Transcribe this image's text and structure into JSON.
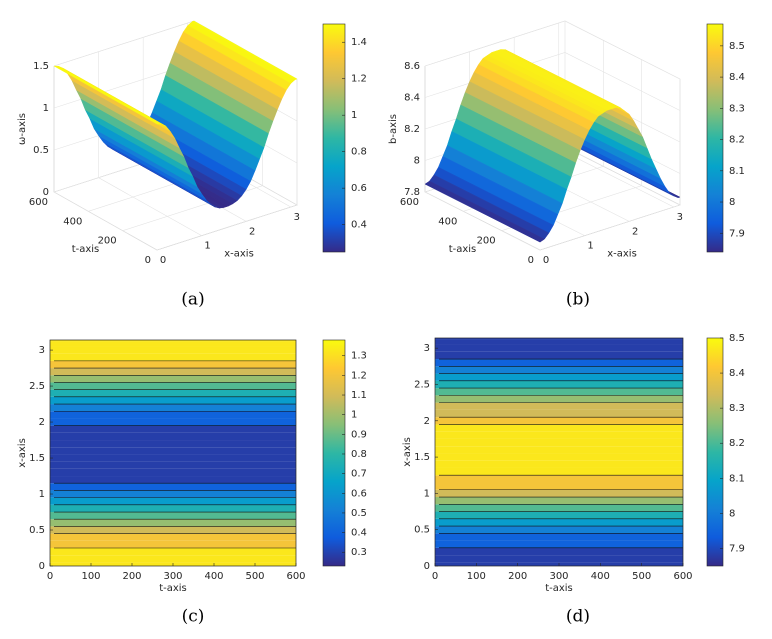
{
  "chart_data": [
    {
      "type": "surface",
      "caption": "(a)",
      "x_label": "x-axis",
      "t_label": "t-axis",
      "z_label": "ω-axis",
      "xlim": [
        0,
        3.14
      ],
      "xticks": [
        0,
        1,
        2,
        3
      ],
      "tlim": [
        0,
        600
      ],
      "tticks": [
        0,
        200,
        400,
        600
      ],
      "zlim": [
        0,
        1.5
      ],
      "zticks": [
        0,
        0.5,
        1,
        1.5
      ],
      "clim": [
        0.25,
        1.5
      ],
      "cticks": [
        0.4,
        0.6,
        0.8,
        1,
        1.2,
        1.4
      ],
      "colormap": [
        "#352a87",
        "#0f5cdd",
        "#1481d6",
        "#06a4ca",
        "#2eb7a4",
        "#87bf77",
        "#d1bb59",
        "#fec832",
        "#f9fb0e"
      ],
      "x": [
        0,
        0.1,
        0.2,
        0.3,
        0.4,
        0.5,
        0.6,
        0.7,
        0.8,
        0.9,
        1,
        1.1,
        1.2,
        1.3,
        1.4,
        1.5,
        1.6,
        1.7,
        1.8,
        1.9,
        2,
        2.1,
        2.2,
        2.3,
        2.4,
        2.5,
        2.6,
        2.7,
        2.8,
        2.9,
        3,
        3.1,
        3.14
      ],
      "values": [
        1.5,
        1.48,
        1.44,
        1.36,
        1.26,
        1.13,
        1.01,
        0.86,
        0.74,
        0.6,
        0.5,
        0.41,
        0.34,
        0.29,
        0.26,
        0.25,
        0.25,
        0.26,
        0.28,
        0.32,
        0.38,
        0.46,
        0.57,
        0.69,
        0.81,
        0.96,
        1.09,
        1.21,
        1.32,
        1.41,
        1.47,
        1.5,
        1.5
      ]
    },
    {
      "type": "surface",
      "caption": "(b)",
      "x_label": "x-axis",
      "t_label": "t-axis",
      "z_label": "b-axis",
      "xlim": [
        0,
        3.14
      ],
      "xticks": [
        0,
        1,
        2,
        3
      ],
      "tlim": [
        0,
        600
      ],
      "tticks": [
        0,
        200,
        400,
        600
      ],
      "zlim": [
        7.8,
        8.6
      ],
      "zticks": [
        7.8,
        8,
        8.2,
        8.4,
        8.6
      ],
      "clim": [
        7.84,
        8.57
      ],
      "cticks": [
        7.9,
        8,
        8.1,
        8.2,
        8.3,
        8.4,
        8.5
      ],
      "colormap": [
        "#352a87",
        "#0f5cdd",
        "#1481d6",
        "#06a4ca",
        "#2eb7a4",
        "#87bf77",
        "#d1bb59",
        "#fec832",
        "#f9fb0e"
      ],
      "x": [
        0,
        0.1,
        0.2,
        0.3,
        0.4,
        0.5,
        0.6,
        0.7,
        0.8,
        0.9,
        1,
        1.1,
        1.2,
        1.3,
        1.4,
        1.5,
        1.6,
        1.7,
        1.8,
        1.9,
        2,
        2.1,
        2.2,
        2.3,
        2.4,
        2.5,
        2.6,
        2.7,
        2.8,
        2.9,
        3,
        3.1,
        3.14
      ],
      "values": [
        7.85,
        7.86,
        7.89,
        7.93,
        7.99,
        8.05,
        8.13,
        8.2,
        8.28,
        8.35,
        8.41,
        8.46,
        8.5,
        8.53,
        8.54,
        8.55,
        8.55,
        8.55,
        8.54,
        8.51,
        8.48,
        8.43,
        8.37,
        8.31,
        8.23,
        8.15,
        8.08,
        8.01,
        7.95,
        7.9,
        7.87,
        7.85,
        7.85
      ]
    },
    {
      "type": "contour",
      "caption": "(c)",
      "x_label": "t-axis",
      "y_label": "x-axis",
      "xlim": [
        0,
        600
      ],
      "xticks": [
        0,
        100,
        200,
        300,
        400,
        500,
        600
      ],
      "ylim": [
        0,
        3.14
      ],
      "yticks": [
        0,
        0.5,
        1,
        1.5,
        2,
        2.5,
        3
      ],
      "clim": [
        0.23,
        1.38
      ],
      "cticks": [
        0.3,
        0.4,
        0.5,
        0.6,
        0.7,
        0.8,
        0.9,
        1,
        1.1,
        1.2,
        1.3
      ],
      "levels": 10,
      "colormap": [
        "#352a87",
        "#0f5cdd",
        "#1481d6",
        "#06a4ca",
        "#2eb7a4",
        "#87bf77",
        "#d1bb59",
        "#fec832",
        "#f9fb0e"
      ],
      "x": [
        0,
        0.1,
        0.2,
        0.3,
        0.4,
        0.5,
        0.6,
        0.7,
        0.8,
        0.9,
        1,
        1.1,
        1.2,
        1.3,
        1.4,
        1.5,
        1.6,
        1.7,
        1.8,
        1.9,
        2,
        2.1,
        2.2,
        2.3,
        2.4,
        2.5,
        2.6,
        2.7,
        2.8,
        2.9,
        3,
        3.1,
        3.14
      ],
      "values": [
        1.38,
        1.37,
        1.32,
        1.25,
        1.16,
        1.05,
        0.94,
        0.81,
        0.69,
        0.58,
        0.48,
        0.39,
        0.33,
        0.29,
        0.26,
        0.25,
        0.25,
        0.26,
        0.27,
        0.31,
        0.37,
        0.44,
        0.54,
        0.65,
        0.76,
        0.89,
        1.01,
        1.12,
        1.22,
        1.3,
        1.35,
        1.38,
        1.38
      ]
    },
    {
      "type": "contour",
      "caption": "(d)",
      "x_label": "t-axis",
      "y_label": "x-axis",
      "xlim": [
        0,
        600
      ],
      "xticks": [
        0,
        100,
        200,
        300,
        400,
        500,
        600
      ],
      "ylim": [
        0,
        3.14
      ],
      "yticks": [
        0,
        0.5,
        1,
        1.5,
        2,
        2.5,
        3
      ],
      "clim": [
        7.85,
        8.5
      ],
      "cticks": [
        7.9,
        8,
        8.1,
        8.2,
        8.3,
        8.4,
        8.5
      ],
      "levels": 10,
      "colormap": [
        "#352a87",
        "#0f5cdd",
        "#1481d6",
        "#06a4ca",
        "#2eb7a4",
        "#87bf77",
        "#d1bb59",
        "#fec832",
        "#f9fb0e"
      ],
      "x": [
        0,
        0.1,
        0.2,
        0.3,
        0.4,
        0.5,
        0.6,
        0.7,
        0.8,
        0.9,
        1,
        1.1,
        1.2,
        1.3,
        1.4,
        1.5,
        1.6,
        1.7,
        1.8,
        1.9,
        2,
        2.1,
        2.2,
        2.3,
        2.4,
        2.5,
        2.6,
        2.7,
        2.8,
        2.9,
        3,
        3.1,
        3.14
      ],
      "values": [
        7.85,
        7.86,
        7.88,
        7.92,
        7.97,
        8.03,
        8.09,
        8.16,
        8.23,
        8.29,
        8.34,
        8.39,
        8.43,
        8.45,
        8.46,
        8.47,
        8.47,
        8.47,
        8.46,
        8.44,
        8.41,
        8.36,
        8.31,
        8.25,
        8.19,
        8.12,
        8.05,
        7.99,
        7.94,
        7.89,
        7.87,
        7.85,
        7.85
      ]
    }
  ]
}
